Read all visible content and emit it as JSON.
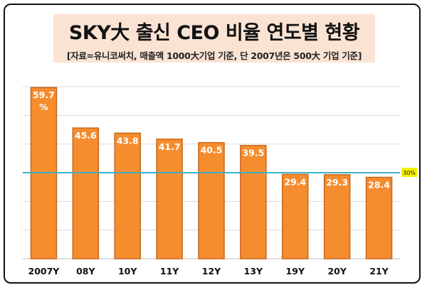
{
  "header": {
    "title": "SKY大 출신 CEO 비율 연도별 현황",
    "subtitle": "[자료=유니코써치, 매출액 1000大기업 기준, 단 2007년은 500大 기업 기준]"
  },
  "colors": {
    "bar": "#f58d2f",
    "bar_edge": "#c8661c",
    "reference_line": "#3cb1c6",
    "reference_badge": "#f6f200",
    "title_background": "#fbe3d3",
    "grid": "#d9d9d9"
  },
  "chart_data": {
    "type": "bar",
    "title": "SKY大 출신 CEO 비율 연도별 현황",
    "subtitle": "[자료=유니코써치, 매출액 1000大기업 기준, 단 2007년은 500大 기업 기준]",
    "categories": [
      "2007Y",
      "08Y",
      "10Y",
      "11Y",
      "12Y",
      "13Y",
      "19Y",
      "20Y",
      "21Y"
    ],
    "values": [
      59.7,
      45.6,
      43.8,
      41.7,
      40.5,
      39.5,
      29.4,
      29.3,
      28.4
    ],
    "data_labels": [
      "59.7\n%",
      "45.6",
      "43.8",
      "41.7",
      "40.5",
      "39.5",
      "29.4",
      "29.3",
      "28.4"
    ],
    "unit": "%",
    "reference_line": {
      "value": 30,
      "label": "30%"
    },
    "ylim": [
      0,
      60
    ],
    "grid": true,
    "xlabel": "",
    "ylabel": ""
  }
}
